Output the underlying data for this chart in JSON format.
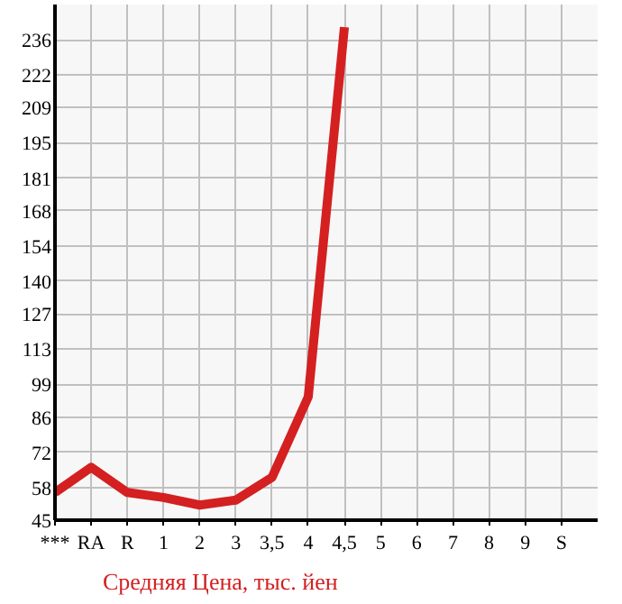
{
  "chart_data": {
    "type": "line",
    "categories": [
      "***",
      "RA",
      "R",
      "1",
      "2",
      "3",
      "3,5",
      "4",
      "4,5",
      "5",
      "6",
      "7",
      "8",
      "9",
      "S"
    ],
    "series": [
      {
        "name": "Средняя Цена, тыс. йен",
        "color": "#d42020",
        "values": [
          56,
          66,
          56,
          54,
          51,
          53,
          62,
          94,
          241,
          null,
          null,
          null,
          null,
          null,
          null
        ]
      }
    ],
    "ylim": [
      45,
      250
    ],
    "yticks": [
      45,
      58,
      72,
      86,
      99,
      113,
      127,
      140,
      154,
      168,
      181,
      195,
      209,
      222,
      236
    ],
    "grid": true,
    "legend": "bottom left",
    "marker": "none",
    "line_style": "solid"
  }
}
